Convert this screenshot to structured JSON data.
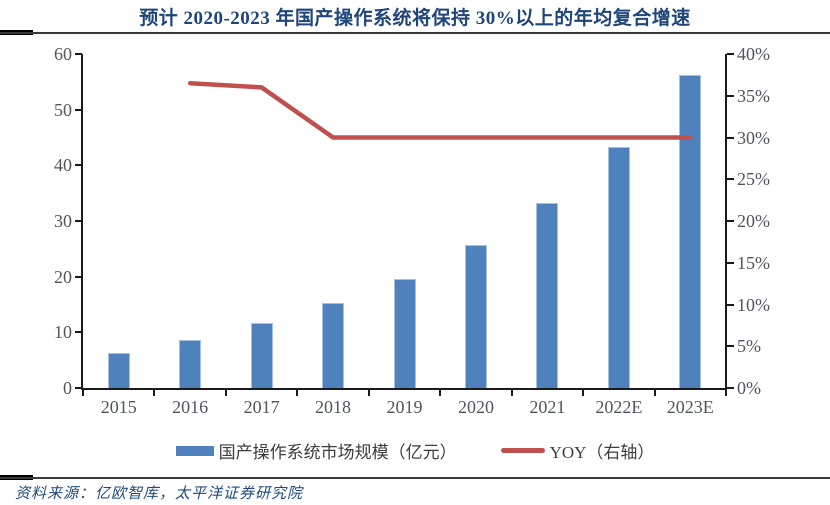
{
  "title": "预计 2020-2023 年国产操作系统将保持 30%以上的年均复合增速",
  "source": "资料来源：亿欧智库，太平洋证券研究院",
  "legend": {
    "bars": "国产操作系统市场规模（亿元）",
    "line": "YOY（右轴）"
  },
  "colors": {
    "bar": "#4f81bd",
    "bar_border": "#a7c1e0",
    "line": "#c0504d",
    "title_text": "#1f4579",
    "source_text": "#1f497d",
    "axis_text": "#51555f",
    "axis_line": "#1a1a1a"
  },
  "chart_data": {
    "type": "bar",
    "categories": [
      "2015",
      "2016",
      "2017",
      "2018",
      "2019",
      "2020",
      "2021",
      "2022E",
      "2023E"
    ],
    "series": [
      {
        "name": "国产操作系统市场规模（亿元）",
        "type": "bar",
        "axis": "left",
        "values": [
          6.3,
          8.6,
          11.7,
          15.2,
          19.6,
          25.6,
          33.3,
          43.3,
          56.2
        ]
      },
      {
        "name": "YOY（右轴）",
        "type": "line",
        "axis": "right",
        "values": [
          null,
          36.5,
          36,
          30,
          30,
          30,
          30,
          30,
          30
        ]
      }
    ],
    "title": "预计 2020-2023 年国产操作系统将保持 30%以上的年均复合增速",
    "xlabel": "",
    "ylabel_left": "亿元",
    "ylabel_right": "YOY",
    "left_axis": {
      "min": 0,
      "max": 60,
      "step": 10,
      "ticks": [
        "0",
        "10",
        "20",
        "30",
        "40",
        "50",
        "60"
      ]
    },
    "right_axis": {
      "min": 0,
      "max": 40,
      "step": 5,
      "ticks": [
        "0%",
        "5%",
        "10%",
        "15%",
        "20%",
        "25%",
        "30%",
        "35%",
        "40%"
      ]
    },
    "grid": false,
    "legend_position": "bottom"
  }
}
